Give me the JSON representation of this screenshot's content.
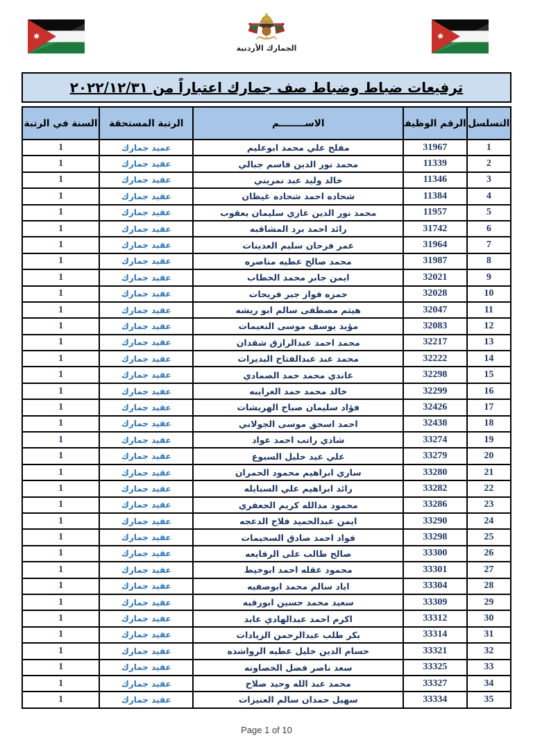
{
  "header": {
    "left_flag": "jordan-flag",
    "right_flag": "jordan-flag",
    "emblem": "jordan-royal-crest",
    "emblem_caption": "الجمارك الأردنية"
  },
  "colors": {
    "title_bg": "#cdddf0",
    "header_bg": "#a7c5e7",
    "border": "#000000",
    "navy": "#1f3864",
    "rank_blue": "#2e74b5"
  },
  "table": {
    "title": "ترفيعات ضباط وضباط صف جمارك اعتباراً من ٢٠٢٢/١٢/٣١",
    "columns": [
      "التسلسل",
      "الرقم الوظيفي",
      "الاســــــــم",
      "الرتبة المستحقة",
      "السنة في الرتبة"
    ],
    "rows": [
      {
        "serial": "1",
        "emp_no": "31967",
        "name": "مفلح علي محمد ابوعليم",
        "rank": "عميد جمارك",
        "year": "1"
      },
      {
        "serial": "2",
        "emp_no": "11339",
        "name": "محمد نور الدين قاسم جبالي",
        "rank": "عقيد جمارك",
        "year": "1"
      },
      {
        "serial": "3",
        "emp_no": "11346",
        "name": "خالد وليد عبد نمريني",
        "rank": "عقيد جمارك",
        "year": "1"
      },
      {
        "serial": "4",
        "emp_no": "11384",
        "name": "شحاده احمد شحاده غيظان",
        "rank": "عقيد جمارك",
        "year": "1"
      },
      {
        "serial": "5",
        "emp_no": "11957",
        "name": "محمد نور الدين غازي سليمان يعقوب",
        "rank": "عقيد جمارك",
        "year": "1"
      },
      {
        "serial": "6",
        "emp_no": "31742",
        "name": "رائد احمد برد المشاقبه",
        "rank": "عقيد جمارك",
        "year": "1"
      },
      {
        "serial": "7",
        "emp_no": "31964",
        "name": "عمر فرحان سليم العدينات",
        "rank": "عقيد جمارك",
        "year": "1"
      },
      {
        "serial": "8",
        "emp_no": "31987",
        "name": "محمد صالح عطيه مناصره",
        "rank": "عقيد جمارك",
        "year": "1"
      },
      {
        "serial": "9",
        "emp_no": "32021",
        "name": "ايمن جابر محمد الخطاب",
        "rank": "عقيد جمارك",
        "year": "1"
      },
      {
        "serial": "10",
        "emp_no": "32028",
        "name": "حمزه فواز جبر فريحات",
        "rank": "عقيد جمارك",
        "year": "1"
      },
      {
        "serial": "11",
        "emp_no": "32047",
        "name": "هيثم مصطفى سالم ابو ريشه",
        "rank": "عقيد جمارك",
        "year": "1"
      },
      {
        "serial": "12",
        "emp_no": "32083",
        "name": "مؤيد يوسف موسى النعيمات",
        "rank": "عقيد جمارك",
        "year": "1"
      },
      {
        "serial": "13",
        "emp_no": "32217",
        "name": "محمد احمد عبدالرازق شقدان",
        "rank": "عقيد جمارك",
        "year": "1"
      },
      {
        "serial": "14",
        "emp_no": "32222",
        "name": "محمد عبد عبدالفتاح البديرات",
        "rank": "عقيد جمارك",
        "year": "1"
      },
      {
        "serial": "15",
        "emp_no": "32298",
        "name": "غاندي محمد حمد الصمادي",
        "rank": "عقيد جمارك",
        "year": "1"
      },
      {
        "serial": "16",
        "emp_no": "32299",
        "name": "خالد محمد حمد الغرايبه",
        "rank": "عقيد جمارك",
        "year": "1"
      },
      {
        "serial": "17",
        "emp_no": "32426",
        "name": "فؤاد سليمان صباح الهريشات",
        "rank": "عقيد جمارك",
        "year": "1"
      },
      {
        "serial": "18",
        "emp_no": "32438",
        "name": "احمد اسحق موسى الجولاني",
        "rank": "عقيد جمارك",
        "year": "1"
      },
      {
        "serial": "19",
        "emp_no": "33274",
        "name": "شادي راتب احمد عواد",
        "rank": "عقيد جمارك",
        "year": "1"
      },
      {
        "serial": "20",
        "emp_no": "33279",
        "name": "علي عيد خليل السبوع",
        "rank": "عقيد جمارك",
        "year": "1"
      },
      {
        "serial": "21",
        "emp_no": "33280",
        "name": "ساري ابراهيم محمود الحمران",
        "rank": "عقيد جمارك",
        "year": "1"
      },
      {
        "serial": "22",
        "emp_no": "33282",
        "name": "رائد ابراهيم علي السبايله",
        "rank": "عقيد جمارك",
        "year": "1"
      },
      {
        "serial": "23",
        "emp_no": "33286",
        "name": "محمود مدالله كريم الجعفري",
        "rank": "عقيد جمارك",
        "year": "1"
      },
      {
        "serial": "24",
        "emp_no": "33290",
        "name": "ايمن عبدالحميد فلاح الدعجه",
        "rank": "عقيد جمارك",
        "year": "1"
      },
      {
        "serial": "25",
        "emp_no": "33298",
        "name": "فواد احمد صادق السحيمات",
        "rank": "عقيد جمارك",
        "year": "1"
      },
      {
        "serial": "26",
        "emp_no": "33300",
        "name": "صالح طالب على الرفايعه",
        "rank": "عقيد جمارك",
        "year": "1"
      },
      {
        "serial": "27",
        "emp_no": "33301",
        "name": "محمود عقله احمد ابوخيط",
        "rank": "عقيد جمارك",
        "year": "1"
      },
      {
        "serial": "28",
        "emp_no": "33304",
        "name": "اياد سالم محمد ابوصفيه",
        "rank": "عقيد جمارك",
        "year": "1"
      },
      {
        "serial": "29",
        "emp_no": "33309",
        "name": "سعيد محمد حسين ابورقيه",
        "rank": "عقيد جمارك",
        "year": "1"
      },
      {
        "serial": "30",
        "emp_no": "33312",
        "name": "اكرم احمد عبدالهادي عابد",
        "rank": "عقيد جمارك",
        "year": "1"
      },
      {
        "serial": "31",
        "emp_no": "33314",
        "name": "بكر طلب عبدالرحمن الزيادات",
        "rank": "عقيد جمارك",
        "year": "1"
      },
      {
        "serial": "32",
        "emp_no": "33321",
        "name": "حسام الدين خليل عطيه الرواشده",
        "rank": "عقيد جمارك",
        "year": "1"
      },
      {
        "serial": "33",
        "emp_no": "33325",
        "name": "سعد ناصر فضل الخصاونه",
        "rank": "عقيد جمارك",
        "year": "1"
      },
      {
        "serial": "34",
        "emp_no": "33327",
        "name": "محمد عبد الله وحيد صلاح",
        "rank": "عقيد جمارك",
        "year": "1"
      },
      {
        "serial": "35",
        "emp_no": "33334",
        "name": "سهيل حمدان سالم العنيزات",
        "rank": "عقيد جمارك",
        "year": "1"
      }
    ]
  },
  "footer": {
    "page_label": "Page 1 of 10"
  }
}
